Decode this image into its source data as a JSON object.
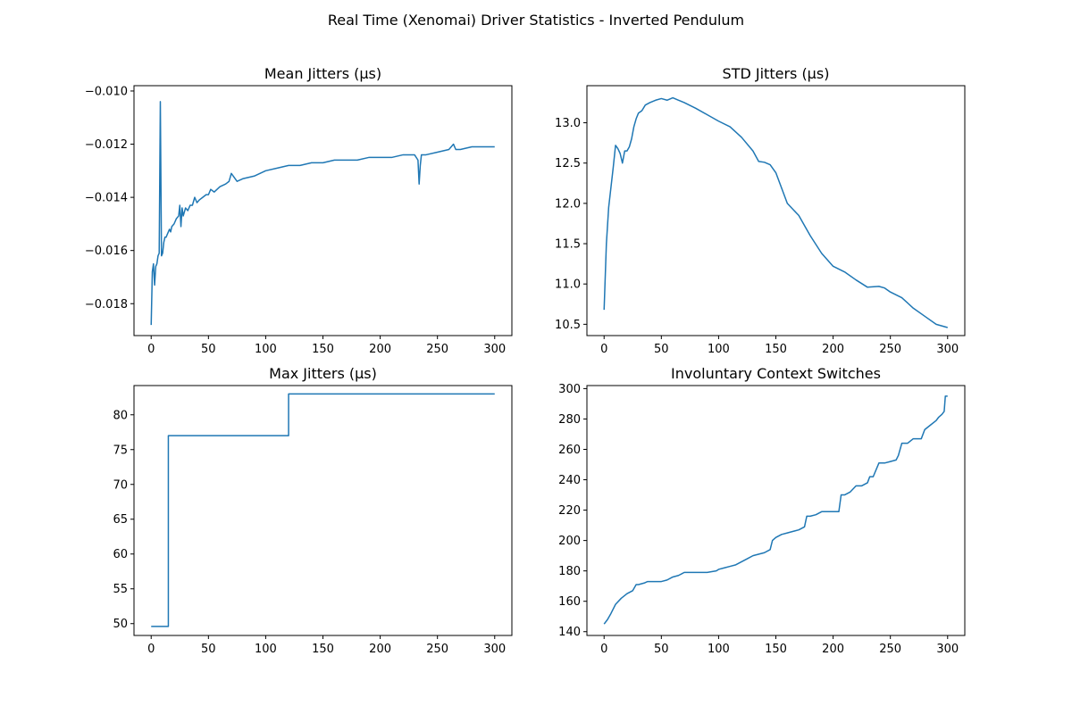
{
  "figure": {
    "suptitle": "Real Time (Xenomai) Driver Statistics - Inverted Pendulum"
  },
  "chart_data": [
    {
      "type": "line",
      "title": "Mean Jitters (µs)",
      "xlabel": "",
      "ylabel": "",
      "xlim": [
        -15,
        315
      ],
      "ylim": [
        -0.0192,
        -0.0098
      ],
      "xticks": [
        0,
        50,
        100,
        150,
        200,
        250,
        300
      ],
      "yticks": [
        -0.018,
        -0.016,
        -0.014,
        -0.012,
        -0.01
      ],
      "ytick_labels": [
        "−0.018",
        "−0.016",
        "−0.014",
        "−0.012",
        "−0.010"
      ],
      "color": "#1f77b4",
      "grid": false,
      "series": [
        {
          "x": [
            0,
            1,
            2,
            3,
            4,
            5,
            6,
            7,
            8,
            9,
            10,
            11,
            12,
            13,
            14,
            15,
            16,
            17,
            18,
            20,
            22,
            24,
            25,
            26,
            27,
            28,
            30,
            32,
            34,
            36,
            38,
            40,
            42,
            45,
            48,
            50,
            52,
            55,
            60,
            65,
            68,
            70,
            75,
            80,
            90,
            95,
            100,
            110,
            120,
            130,
            140,
            150,
            160,
            170,
            180,
            190,
            200,
            210,
            220,
            230,
            233,
            234,
            235,
            236,
            240,
            250,
            260,
            264,
            266,
            270,
            280,
            290,
            300
          ],
          "y": [
            -0.0188,
            -0.0168,
            -0.0165,
            -0.0173,
            -0.0166,
            -0.0165,
            -0.0162,
            -0.0161,
            -0.0104,
            -0.0162,
            -0.0161,
            -0.0157,
            -0.0155,
            -0.0155,
            -0.0154,
            -0.0153,
            -0.0152,
            -0.0153,
            -0.0151,
            -0.015,
            -0.0148,
            -0.0147,
            -0.0143,
            -0.0151,
            -0.0144,
            -0.0147,
            -0.0144,
            -0.0145,
            -0.0143,
            -0.0143,
            -0.014,
            -0.0142,
            -0.0141,
            -0.014,
            -0.0139,
            -0.0139,
            -0.0137,
            -0.0138,
            -0.0136,
            -0.0135,
            -0.0134,
            -0.0131,
            -0.0134,
            -0.0133,
            -0.0132,
            -0.0131,
            -0.013,
            -0.0129,
            -0.0128,
            -0.0128,
            -0.0127,
            -0.0127,
            -0.0126,
            -0.0126,
            -0.0126,
            -0.0125,
            -0.0125,
            -0.0125,
            -0.0124,
            -0.0124,
            -0.0126,
            -0.0135,
            -0.0128,
            -0.0124,
            -0.0124,
            -0.0123,
            -0.0122,
            -0.012,
            -0.0122,
            -0.0122,
            -0.0121,
            -0.0121,
            -0.0121
          ]
        }
      ]
    },
    {
      "type": "line",
      "title": "STD Jitters (µs)",
      "xlabel": "",
      "ylabel": "",
      "xlim": [
        -15,
        315
      ],
      "ylim": [
        10.36,
        13.46
      ],
      "xticks": [
        0,
        50,
        100,
        150,
        200,
        250,
        300
      ],
      "yticks": [
        10.5,
        11.0,
        11.5,
        12.0,
        12.5,
        13.0
      ],
      "ytick_labels": [
        "10.5",
        "11.0",
        "11.5",
        "12.0",
        "12.5",
        "13.0"
      ],
      "color": "#1f77b4",
      "grid": false,
      "series": [
        {
          "x": [
            0,
            2,
            4,
            6,
            8,
            10,
            12,
            14,
            16,
            18,
            20,
            22,
            24,
            26,
            28,
            30,
            33,
            36,
            40,
            45,
            50,
            55,
            60,
            65,
            70,
            80,
            90,
            100,
            110,
            120,
            130,
            135,
            140,
            145,
            150,
            160,
            170,
            180,
            190,
            200,
            210,
            220,
            230,
            240,
            245,
            250,
            260,
            270,
            280,
            290,
            300
          ],
          "y": [
            10.68,
            11.5,
            11.95,
            12.2,
            12.45,
            12.72,
            12.68,
            12.62,
            12.5,
            12.65,
            12.65,
            12.7,
            12.8,
            12.95,
            13.05,
            13.12,
            13.15,
            13.22,
            13.25,
            13.28,
            13.3,
            13.28,
            13.31,
            13.28,
            13.25,
            13.18,
            13.1,
            13.02,
            12.95,
            12.82,
            12.65,
            12.52,
            12.51,
            12.48,
            12.38,
            12.0,
            11.85,
            11.6,
            11.38,
            11.22,
            11.15,
            11.05,
            10.96,
            10.97,
            10.95,
            10.9,
            10.83,
            10.7,
            10.6,
            10.5,
            10.46
          ]
        }
      ]
    },
    {
      "type": "line",
      "title": "Max Jitters (µs)",
      "xlabel": "",
      "ylabel": "",
      "xlim": [
        -15,
        315
      ],
      "ylim": [
        48.3,
        84.2
      ],
      "xticks": [
        0,
        50,
        100,
        150,
        200,
        250,
        300
      ],
      "yticks": [
        50,
        55,
        60,
        65,
        70,
        75,
        80
      ],
      "ytick_labels": [
        "50",
        "55",
        "60",
        "65",
        "70",
        "75",
        "80"
      ],
      "color": "#1f77b4",
      "grid": false,
      "series": [
        {
          "x": [
            0,
            15,
            15,
            120,
            120,
            300
          ],
          "y": [
            49.6,
            49.6,
            77,
            77,
            83,
            83
          ]
        }
      ]
    },
    {
      "type": "line",
      "title": "Involuntary Context Switches",
      "xlabel": "",
      "ylabel": "",
      "xlim": [
        -15,
        315
      ],
      "ylim": [
        137.5,
        302
      ],
      "xticks": [
        0,
        50,
        100,
        150,
        200,
        250,
        300
      ],
      "yticks": [
        140,
        160,
        180,
        200,
        220,
        240,
        260,
        280,
        300
      ],
      "ytick_labels": [
        "140",
        "160",
        "180",
        "200",
        "220",
        "240",
        "260",
        "280",
        "300"
      ],
      "color": "#1f77b4",
      "grid": false,
      "series": [
        {
          "x": [
            0,
            3,
            6,
            10,
            15,
            20,
            25,
            28,
            30,
            35,
            38,
            45,
            50,
            55,
            60,
            65,
            70,
            80,
            90,
            98,
            100,
            105,
            110,
            115,
            120,
            125,
            130,
            140,
            145,
            147,
            150,
            155,
            160,
            165,
            170,
            175,
            177,
            180,
            185,
            190,
            195,
            200,
            205,
            207,
            210,
            215,
            220,
            225,
            230,
            232,
            235,
            240,
            245,
            250,
            255,
            257,
            260,
            265,
            270,
            275,
            277,
            280,
            285,
            290,
            292,
            295,
            297,
            298,
            300
          ],
          "y": [
            145,
            148,
            152,
            158,
            162,
            165,
            167,
            171,
            171,
            172,
            173,
            173,
            173,
            174,
            176,
            177,
            179,
            179,
            179,
            180,
            181,
            182,
            183,
            184,
            186,
            188,
            190,
            192,
            194,
            200,
            202,
            204,
            205,
            206,
            207,
            209,
            216,
            216,
            217,
            219,
            219,
            219,
            219,
            230,
            230,
            232,
            236,
            236,
            238,
            242,
            242,
            251,
            251,
            252,
            253,
            256,
            264,
            264,
            267,
            267,
            267,
            273,
            276,
            279,
            281,
            283,
            285,
            295,
            295
          ]
        }
      ]
    }
  ]
}
